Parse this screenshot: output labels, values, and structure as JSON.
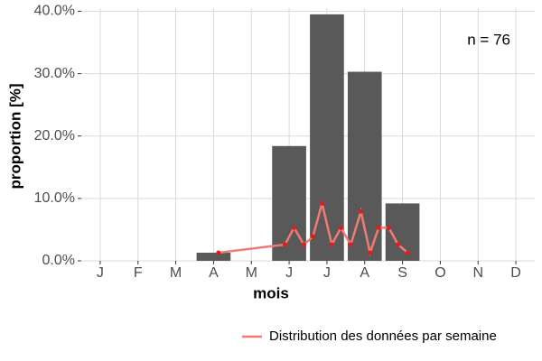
{
  "chart_data": {
    "type": "bar",
    "x_label": "mois",
    "y_label": "proportion [%]",
    "annotation": "n = 76",
    "categories": [
      "J",
      "F",
      "M",
      "A",
      "M",
      "J",
      "J",
      "A",
      "S",
      "O",
      "N",
      "D"
    ],
    "values": [
      0,
      0,
      0,
      1.3,
      0,
      18.4,
      39.5,
      30.3,
      9.2,
      0,
      0,
      0
    ],
    "color": "#595959",
    "xlim": [
      0.5,
      12.5
    ],
    "ylim": [
      0,
      40.5
    ],
    "yticks": [
      {
        "value": 0,
        "label": "0.0%"
      },
      {
        "value": 10,
        "label": "10.0%"
      },
      {
        "value": 20,
        "label": "20.0%"
      },
      {
        "value": 30,
        "label": "30.0%"
      },
      {
        "value": 40,
        "label": "40.0%"
      }
    ],
    "grid": true,
    "legend": "bottom-right",
    "series": [
      {
        "name": "Distribution des données par semaine",
        "type": "line",
        "color": "#f07b72",
        "marker_color": "#e41a1c",
        "x": [
          4.13,
          5.89,
          6.13,
          6.39,
          6.63,
          6.87,
          7.13,
          7.37,
          7.63,
          7.9,
          8.14,
          8.37,
          8.64,
          8.88,
          9.14
        ],
        "values": [
          1.3,
          2.6,
          5.3,
          2.6,
          3.9,
          9.2,
          2.6,
          5.3,
          2.6,
          7.9,
          1.3,
          5.3,
          5.3,
          2.6,
          1.3
        ]
      }
    ]
  }
}
